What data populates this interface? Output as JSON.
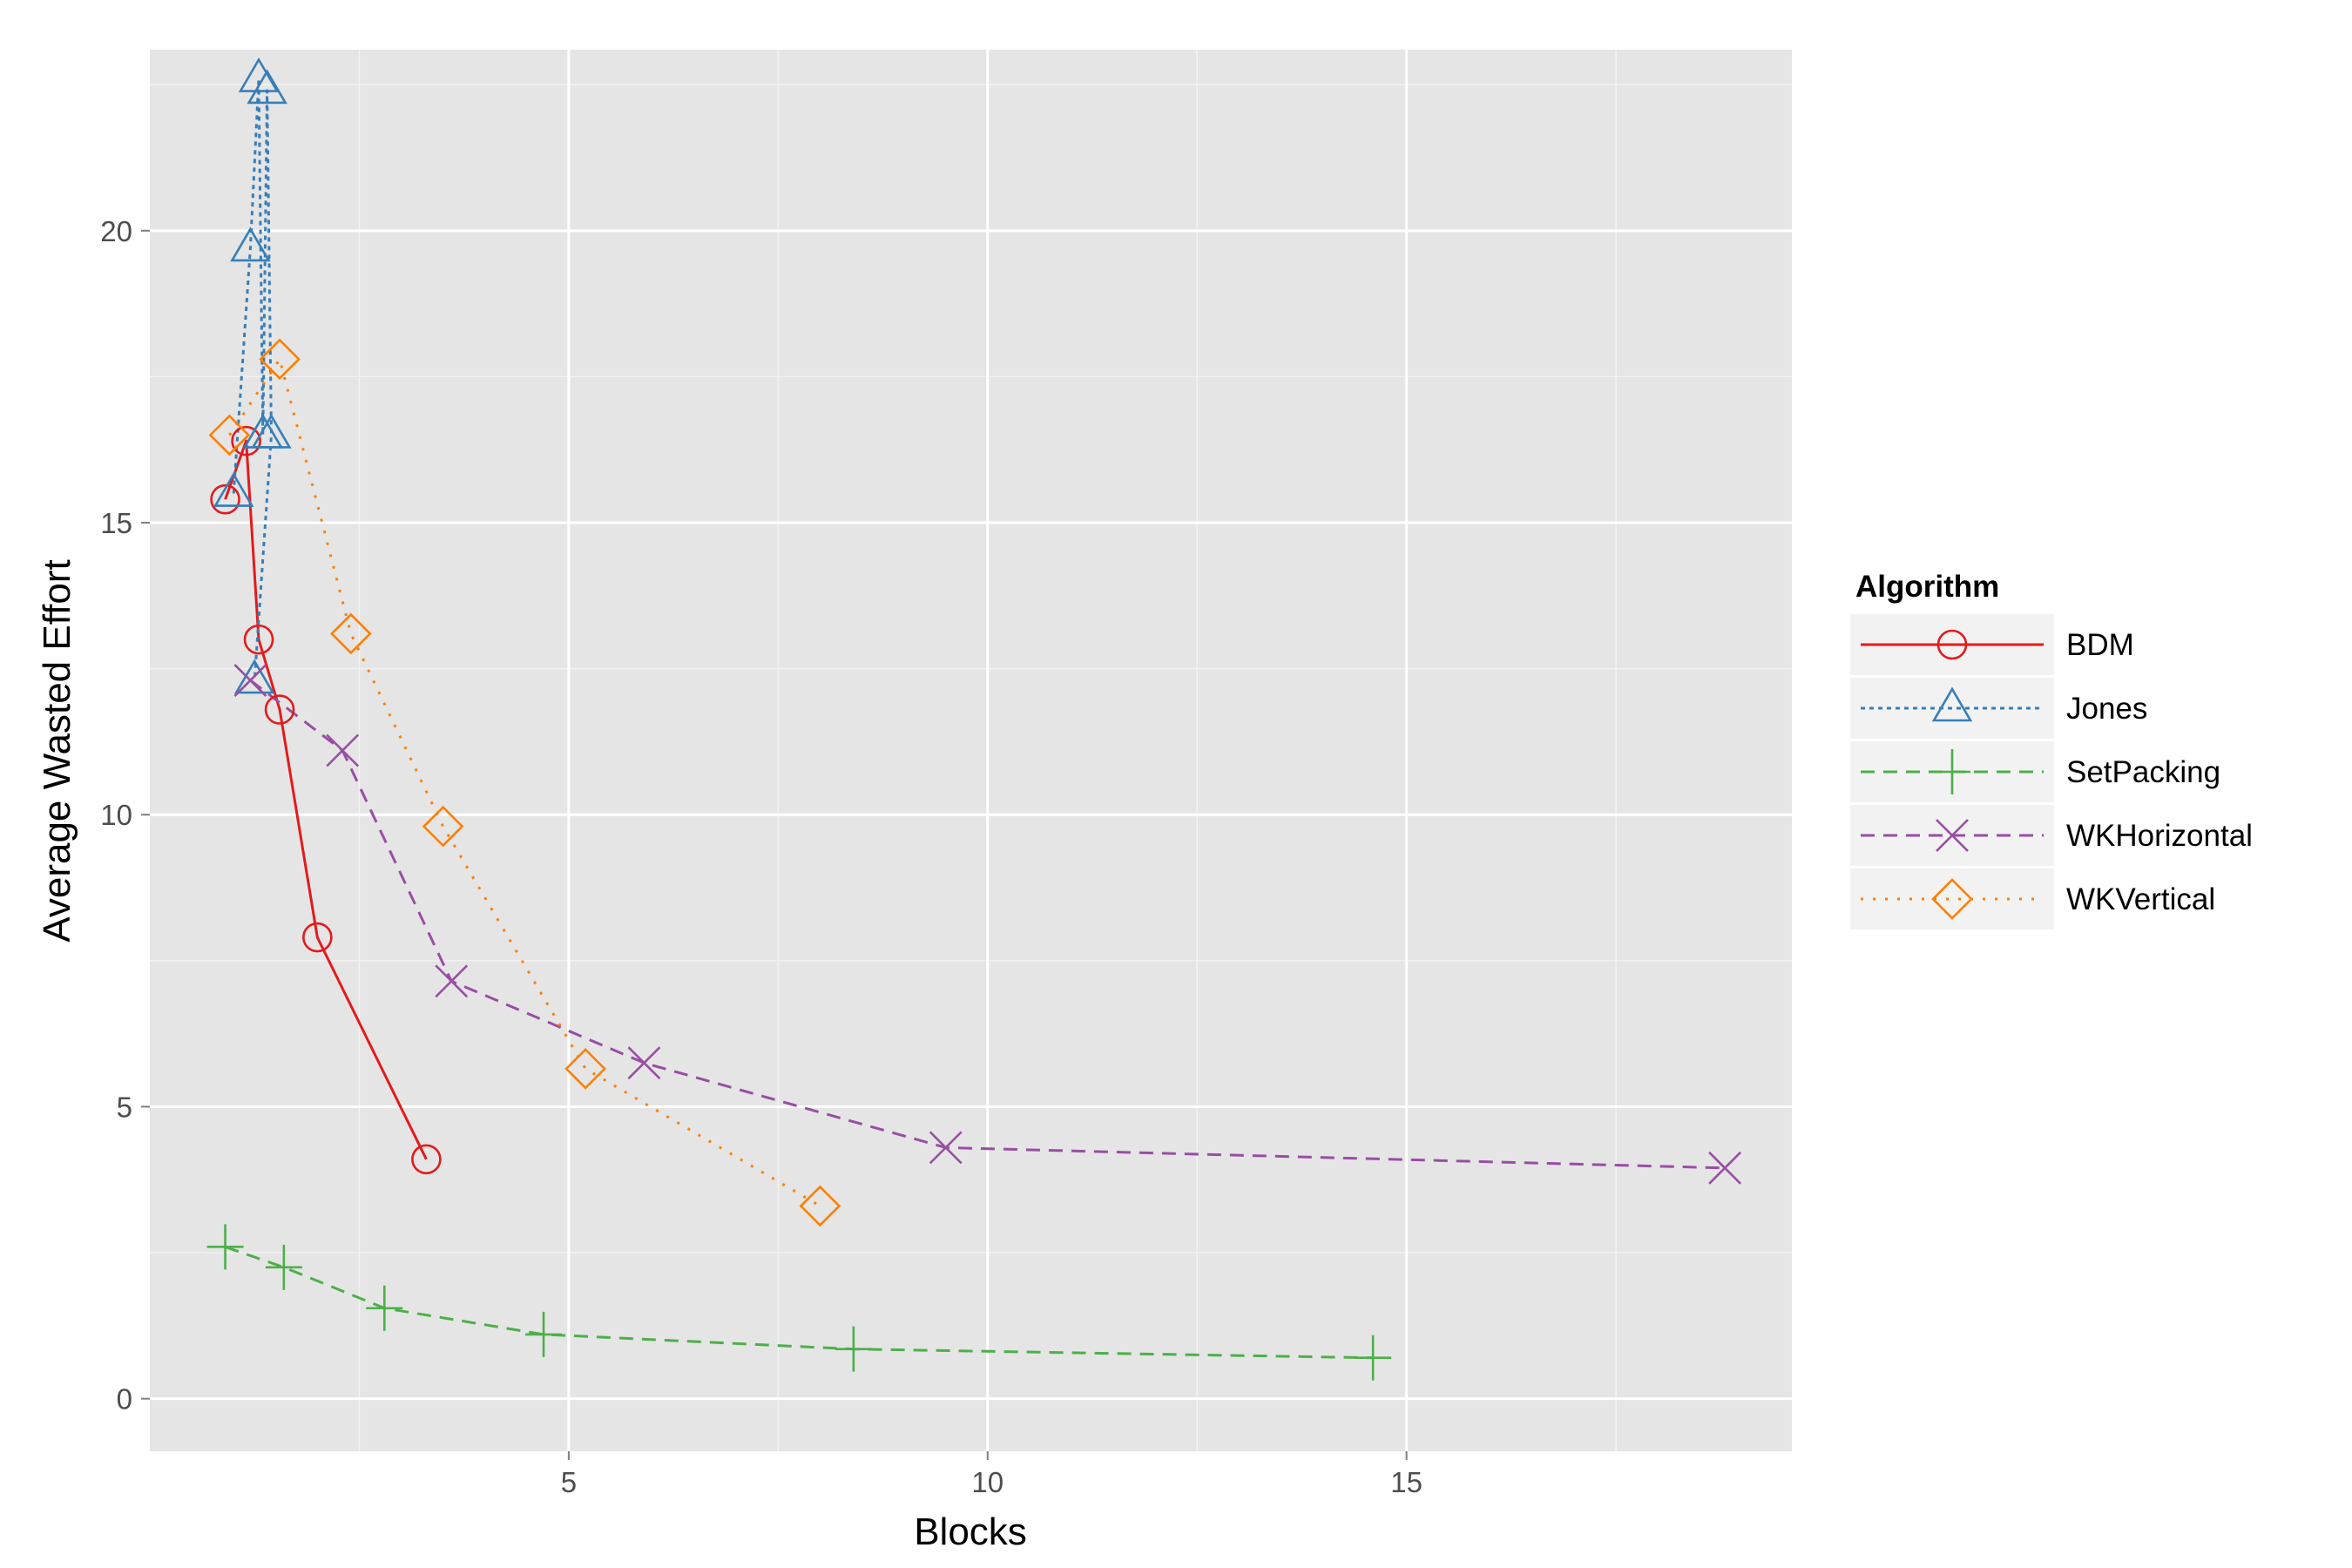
{
  "chart_data": {
    "type": "line",
    "title": "",
    "xlabel": "Blocks",
    "ylabel": "Average Wasted Effort",
    "xlim": [
      0.0,
      19.6
    ],
    "ylim": [
      -0.9,
      23.1
    ],
    "x_ticks": [
      5,
      10,
      15
    ],
    "x_tick_labels": [
      "5",
      "10",
      "15"
    ],
    "x_minor_ticks": [
      2.5,
      7.5,
      12.5,
      17.5
    ],
    "y_ticks": [
      0,
      5,
      10,
      15,
      20
    ],
    "y_tick_labels": [
      "0",
      "5",
      "10",
      "15",
      "20"
    ],
    "y_minor_ticks": [
      2.5,
      7.5,
      12.5,
      17.5,
      22.5
    ],
    "grid": true,
    "panel_background": "#e5e5e5",
    "grid_color": "#ffffff",
    "legend": {
      "title": "Algorithm",
      "position": "right"
    },
    "series": [
      {
        "name": "BDM",
        "color": "#e41a1c",
        "linestyle": "solid",
        "marker": "circle",
        "x": [
          0.9,
          1.15,
          1.3,
          1.55,
          2.0,
          3.3
        ],
        "y": [
          15.4,
          16.4,
          13.0,
          11.8,
          7.9,
          4.1
        ]
      },
      {
        "name": "Jones",
        "color": "#377eb8",
        "linestyle": "dotted-dense",
        "marker": "triangle",
        "x": [
          1.0,
          1.2,
          1.3,
          1.35,
          1.4,
          1.45,
          1.25
        ],
        "y": [
          15.5,
          19.7,
          22.6,
          16.5,
          22.4,
          16.5,
          12.3
        ]
      },
      {
        "name": "SetPacking",
        "color": "#4daf4a",
        "linestyle": "dashed",
        "marker": "plus",
        "x": [
          0.9,
          1.6,
          2.8,
          4.7,
          8.4,
          14.6
        ],
        "y": [
          2.6,
          2.25,
          1.55,
          1.1,
          0.85,
          0.7
        ]
      },
      {
        "name": "WKHorizontal",
        "color": "#984ea3",
        "linestyle": "dashed",
        "marker": "cross",
        "x": [
          1.2,
          2.3,
          3.6,
          5.9,
          9.5,
          18.8
        ],
        "y": [
          12.3,
          11.1,
          7.15,
          5.75,
          4.3,
          3.95
        ]
      },
      {
        "name": "WKVertical",
        "color": "#ff7f00",
        "linestyle": "dotted",
        "marker": "diamond",
        "x": [
          0.95,
          1.55,
          2.4,
          3.5,
          5.2,
          8.0
        ],
        "y": [
          16.5,
          17.8,
          13.1,
          9.8,
          5.65,
          3.3
        ]
      }
    ]
  }
}
